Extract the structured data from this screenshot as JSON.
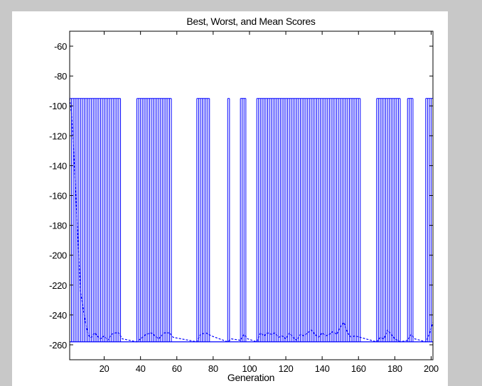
{
  "chart_data": {
    "type": "line",
    "title": "Best, Worst, and Mean Scores",
    "xlabel": "Generation",
    "ylabel": "",
    "xlim": [
      1,
      201
    ],
    "ylim": [
      -270,
      -50
    ],
    "grid": false,
    "legend": "none",
    "colors": {
      "series": "#0000ff",
      "axes": "#000000",
      "background": "#ffffff",
      "window": "#c8c8c8"
    },
    "x_ticks": [
      20,
      40,
      60,
      80,
      100,
      120,
      140,
      160,
      180,
      200
    ],
    "x_tick_labels": [
      "20",
      "40",
      "60",
      "80",
      "100",
      "120",
      "140",
      "160",
      "180",
      "200"
    ],
    "y_ticks": [
      -60,
      -80,
      -100,
      -120,
      -140,
      -160,
      -180,
      -200,
      -220,
      -240,
      -260
    ],
    "y_tick_labels": [
      "-60",
      "-80",
      "-100",
      "-120",
      "-140",
      "-160",
      "-180",
      "-200",
      "-220",
      "-240",
      "-260"
    ],
    "series": [
      {
        "role": "best",
        "style": "solid",
        "x": [
          1,
          201
        ],
        "values": [
          -258,
          -258
        ]
      },
      {
        "role": "worst",
        "style": "vertical-lines",
        "top_value": -95,
        "baseline_value": -258,
        "x_segments": [
          [
            1,
            29
          ],
          [
            38,
            57
          ],
          [
            71,
            78
          ],
          [
            88,
            89
          ],
          [
            95,
            98
          ],
          [
            104,
            161
          ],
          [
            170,
            183
          ],
          [
            187,
            190
          ],
          [
            197,
            201
          ]
        ]
      },
      {
        "role": "mean",
        "style": "dashed",
        "x": [
          1,
          2,
          3,
          4,
          5,
          6,
          7,
          8,
          9,
          10,
          11,
          12,
          13,
          14,
          15,
          16,
          18,
          20,
          22,
          24,
          26,
          28,
          30,
          38,
          40,
          43,
          46,
          48,
          50,
          53,
          56,
          58,
          71,
          73,
          76,
          79,
          88,
          90,
          95,
          97,
          99,
          104,
          106,
          108,
          110,
          112,
          114,
          116,
          118,
          120,
          122,
          124,
          126,
          128,
          130,
          132,
          134,
          136,
          138,
          140,
          142,
          144,
          146,
          148,
          150,
          152,
          154,
          156,
          158,
          161,
          170,
          172,
          174,
          176,
          178,
          180,
          183,
          187,
          189,
          191,
          197,
          199,
          201
        ],
        "values": [
          -95,
          -105,
          -125,
          -150,
          -175,
          -200,
          -225,
          -232,
          -240,
          -247,
          -252,
          -255,
          -255,
          -253,
          -252,
          -254,
          -256,
          -254,
          -257,
          -253,
          -252,
          -252,
          -256,
          -258,
          -256,
          -253,
          -252,
          -254,
          -256,
          -252,
          -252,
          -255,
          -258,
          -253,
          -252,
          -254,
          -258,
          -256,
          -257,
          -253,
          -256,
          -258,
          -252,
          -254,
          -252,
          -253,
          -252,
          -255,
          -254,
          -256,
          -252,
          -255,
          -257,
          -253,
          -254,
          -252,
          -250,
          -253,
          -255,
          -252,
          -254,
          -253,
          -251,
          -253,
          -248,
          -245,
          -252,
          -255,
          -254,
          -255,
          -258,
          -255,
          -256,
          -250,
          -253,
          -256,
          -258,
          -257,
          -253,
          -256,
          -258,
          -253,
          -245
        ]
      }
    ]
  }
}
